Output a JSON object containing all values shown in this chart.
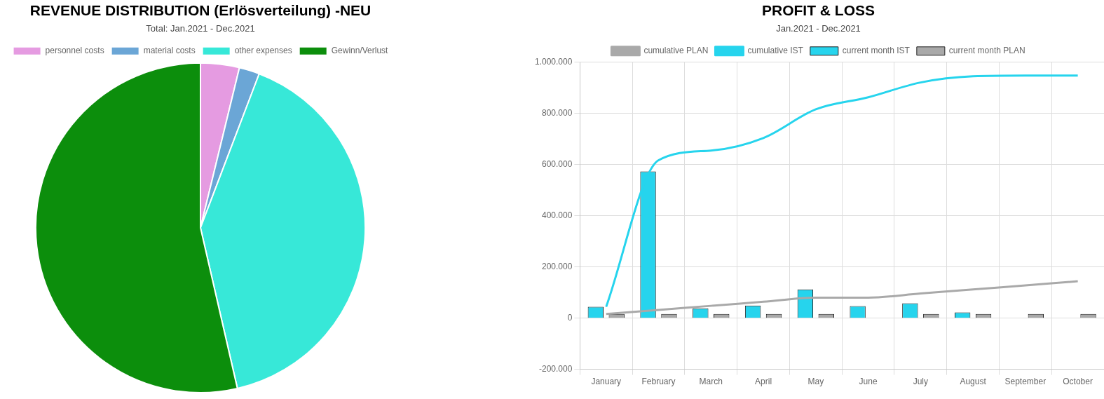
{
  "chart_data": [
    {
      "type": "pie",
      "title": "REVENUE DISTRIBUTION (Erlösverteilung) -NEU",
      "subtitle": "Total: Jan.2021 - Dec.2021",
      "categories": [
        "personnel costs",
        "material costs",
        "other expenses",
        "Gewinn/Verlust"
      ],
      "values": [
        3.8,
        2.0,
        40.6,
        53.6
      ],
      "colors": [
        "#e59be1",
        "#6ba6d6",
        "#37e8d8",
        "#0c8e0c"
      ],
      "legend": "top"
    },
    {
      "type": "bar",
      "title": "PROFIT & LOSS",
      "subtitle": "Jan.2021 - Dec.2021",
      "categories": [
        "January",
        "February",
        "March",
        "April",
        "May",
        "June",
        "July",
        "August",
        "September",
        "October"
      ],
      "series": [
        {
          "name": "cumulative PLAN",
          "type": "line",
          "color": "#a9a9a9",
          "values": [
            16000,
            32000,
            48000,
            64000,
            80000,
            80000,
            96000,
            112000,
            128000,
            144000
          ]
        },
        {
          "name": "current month IST",
          "type": "bar",
          "color": "#26d4ed",
          "values": [
            44000,
            573000,
            38000,
            49000,
            112000,
            47000,
            58000,
            22000,
            null,
            null
          ]
        },
        {
          "name": "current month PLAN",
          "type": "bar",
          "color": "#a9a9a9",
          "values": [
            16000,
            16000,
            16000,
            16000,
            16000,
            0,
            16000,
            16000,
            16000,
            16000
          ]
        },
        {
          "name": "cumulative IST",
          "type": "line",
          "color": "#26d4ed",
          "values": [
            44000,
            617000,
            655000,
            704000,
            816000,
            863000,
            921000,
            945000,
            948000,
            948000
          ]
        }
      ],
      "ylim": [
        -200000,
        1000000
      ],
      "yticks": [
        {
          "value": -200000,
          "label": "-200.000"
        },
        {
          "value": 0,
          "label": "0"
        },
        {
          "value": 200000,
          "label": "200.000"
        },
        {
          "value": 400000,
          "label": "400.000"
        },
        {
          "value": 600000,
          "label": "600.000"
        },
        {
          "value": 800000,
          "label": "800.000"
        },
        {
          "value": 1000000,
          "label": "1.000.000"
        }
      ],
      "grid": true,
      "legend": "top"
    }
  ]
}
